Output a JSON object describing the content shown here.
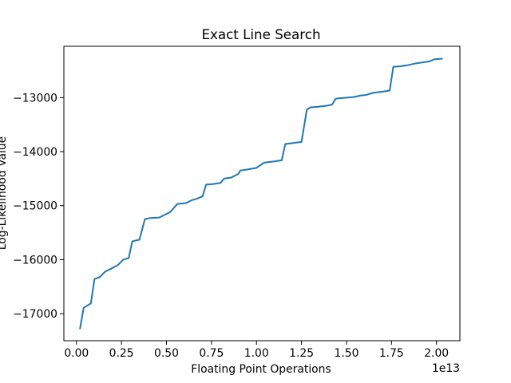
{
  "chart_data": {
    "type": "line",
    "title": "Exact Line Search",
    "xlabel": "Floating Point Operations",
    "ylabel": "Log-Likelihood Value",
    "x_offset_text": "1e13",
    "xlim": [
      -0.07,
      2.13
    ],
    "ylim": [
      -17500,
      -12050
    ],
    "x_ticks": [
      0.0,
      0.25,
      0.5,
      0.75,
      1.0,
      1.25,
      1.5,
      1.75,
      2.0
    ],
    "x_tick_labels": [
      "0.00",
      "0.25",
      "0.50",
      "0.75",
      "1.00",
      "1.25",
      "1.50",
      "1.75",
      "2.00"
    ],
    "y_ticks": [
      -17000,
      -16000,
      -15000,
      -14000,
      -13000
    ],
    "y_tick_labels": [
      "−17000",
      "−16000",
      "−15000",
      "−14000",
      "−13000"
    ],
    "grid": false,
    "legend": "none",
    "series": [
      {
        "color": "#1f77b4",
        "x": [
          0.02,
          0.04,
          0.08,
          0.1,
          0.13,
          0.16,
          0.19,
          0.23,
          0.26,
          0.29,
          0.31,
          0.35,
          0.38,
          0.41,
          0.46,
          0.49,
          0.52,
          0.56,
          0.61,
          0.64,
          0.67,
          0.7,
          0.72,
          0.76,
          0.8,
          0.82,
          0.86,
          0.9,
          0.91,
          0.95,
          1.0,
          1.04,
          1.05,
          1.1,
          1.14,
          1.16,
          1.25,
          1.28,
          1.3,
          1.34,
          1.39,
          1.42,
          1.44,
          1.5,
          1.54,
          1.58,
          1.61,
          1.65,
          1.7,
          1.74,
          1.76,
          1.8,
          1.84,
          1.88,
          1.92,
          1.96,
          1.99,
          2.03
        ],
        "y": [
          -17270,
          -16890,
          -16810,
          -16360,
          -16320,
          -16220,
          -16170,
          -16100,
          -16000,
          -15970,
          -15660,
          -15630,
          -15250,
          -15230,
          -15220,
          -15170,
          -15120,
          -14970,
          -14950,
          -14900,
          -14870,
          -14830,
          -14610,
          -14600,
          -14580,
          -14500,
          -14480,
          -14410,
          -14350,
          -14330,
          -14300,
          -14210,
          -14200,
          -14180,
          -14160,
          -13860,
          -13820,
          -13220,
          -13180,
          -13170,
          -13150,
          -13130,
          -13020,
          -13000,
          -12990,
          -12960,
          -12950,
          -12910,
          -12890,
          -12870,
          -12430,
          -12420,
          -12400,
          -12370,
          -12350,
          -12330,
          -12290,
          -12280
        ]
      }
    ]
  }
}
